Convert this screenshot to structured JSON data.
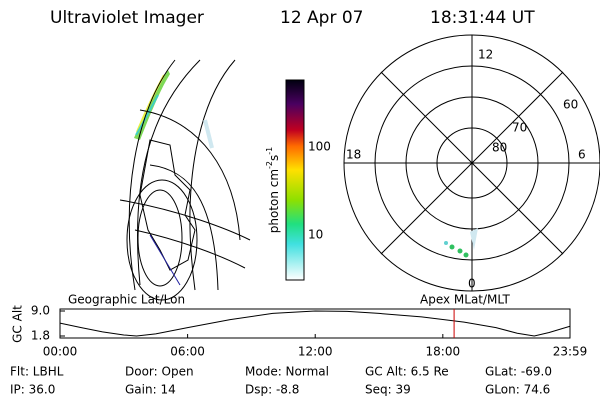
{
  "header": {
    "title": "Ultraviolet Imager",
    "date": "12 Apr 07",
    "time": "18:31:44 UT"
  },
  "colorbar": {
    "label": [
      "photon cm",
      "-2",
      "s",
      "-1"
    ],
    "tick_labels": [
      "100",
      "10"
    ]
  },
  "polar_plot": {
    "mlt_labels": [
      "12",
      "18",
      "6",
      "0"
    ],
    "lat_labels": [
      "60",
      "70",
      "80"
    ]
  },
  "panel_labels": [
    "Geographic Lat/Lon",
    "Apex MLat/MLT"
  ],
  "altitude_plot": {
    "ylabel": "GC Alt",
    "x": [
      0,
      1,
      2,
      3,
      3.6,
      4.5,
      6,
      8,
      10,
      12,
      13.5,
      15,
      17,
      19,
      20.5,
      21.5,
      22.3,
      23,
      23.98
    ],
    "values": [
      5.5,
      4.2,
      3.0,
      2.1,
      1.8,
      2.4,
      4.2,
      6.5,
      8.3,
      9.0,
      8.9,
      8.3,
      7.3,
      5.8,
      4.2,
      2.6,
      1.8,
      2.8,
      4.6
    ],
    "xlim": [
      0,
      23.98
    ],
    "ylim": [
      1.8,
      9.0
    ],
    "yticks": [
      {
        "value": 9,
        "label": "9.0"
      },
      1.8
    ],
    "xticks": [
      {
        "value": 0,
        "label": "00:00"
      },
      {
        "value": 6,
        "label": "06:00"
      },
      {
        "value": 12,
        "label": "12:00"
      },
      {
        "value": 18,
        "label": "18:00"
      },
      {
        "value": 23.98,
        "label": "23:59"
      }
    ],
    "marker_time": 18.53,
    "marker_color": "#cc0000"
  },
  "footer": [
    [
      "Flt: LBHL",
      "IP: 36.0"
    ],
    [
      "Door: Open",
      "Gain: 14"
    ],
    [
      "Mode: Normal",
      "Dsp:   -8.8"
    ],
    [
      "GC Alt: 6.5 Re",
      "Seq: 39"
    ],
    [
      "GLat: -69.0",
      "GLon:  74.6"
    ]
  ]
}
